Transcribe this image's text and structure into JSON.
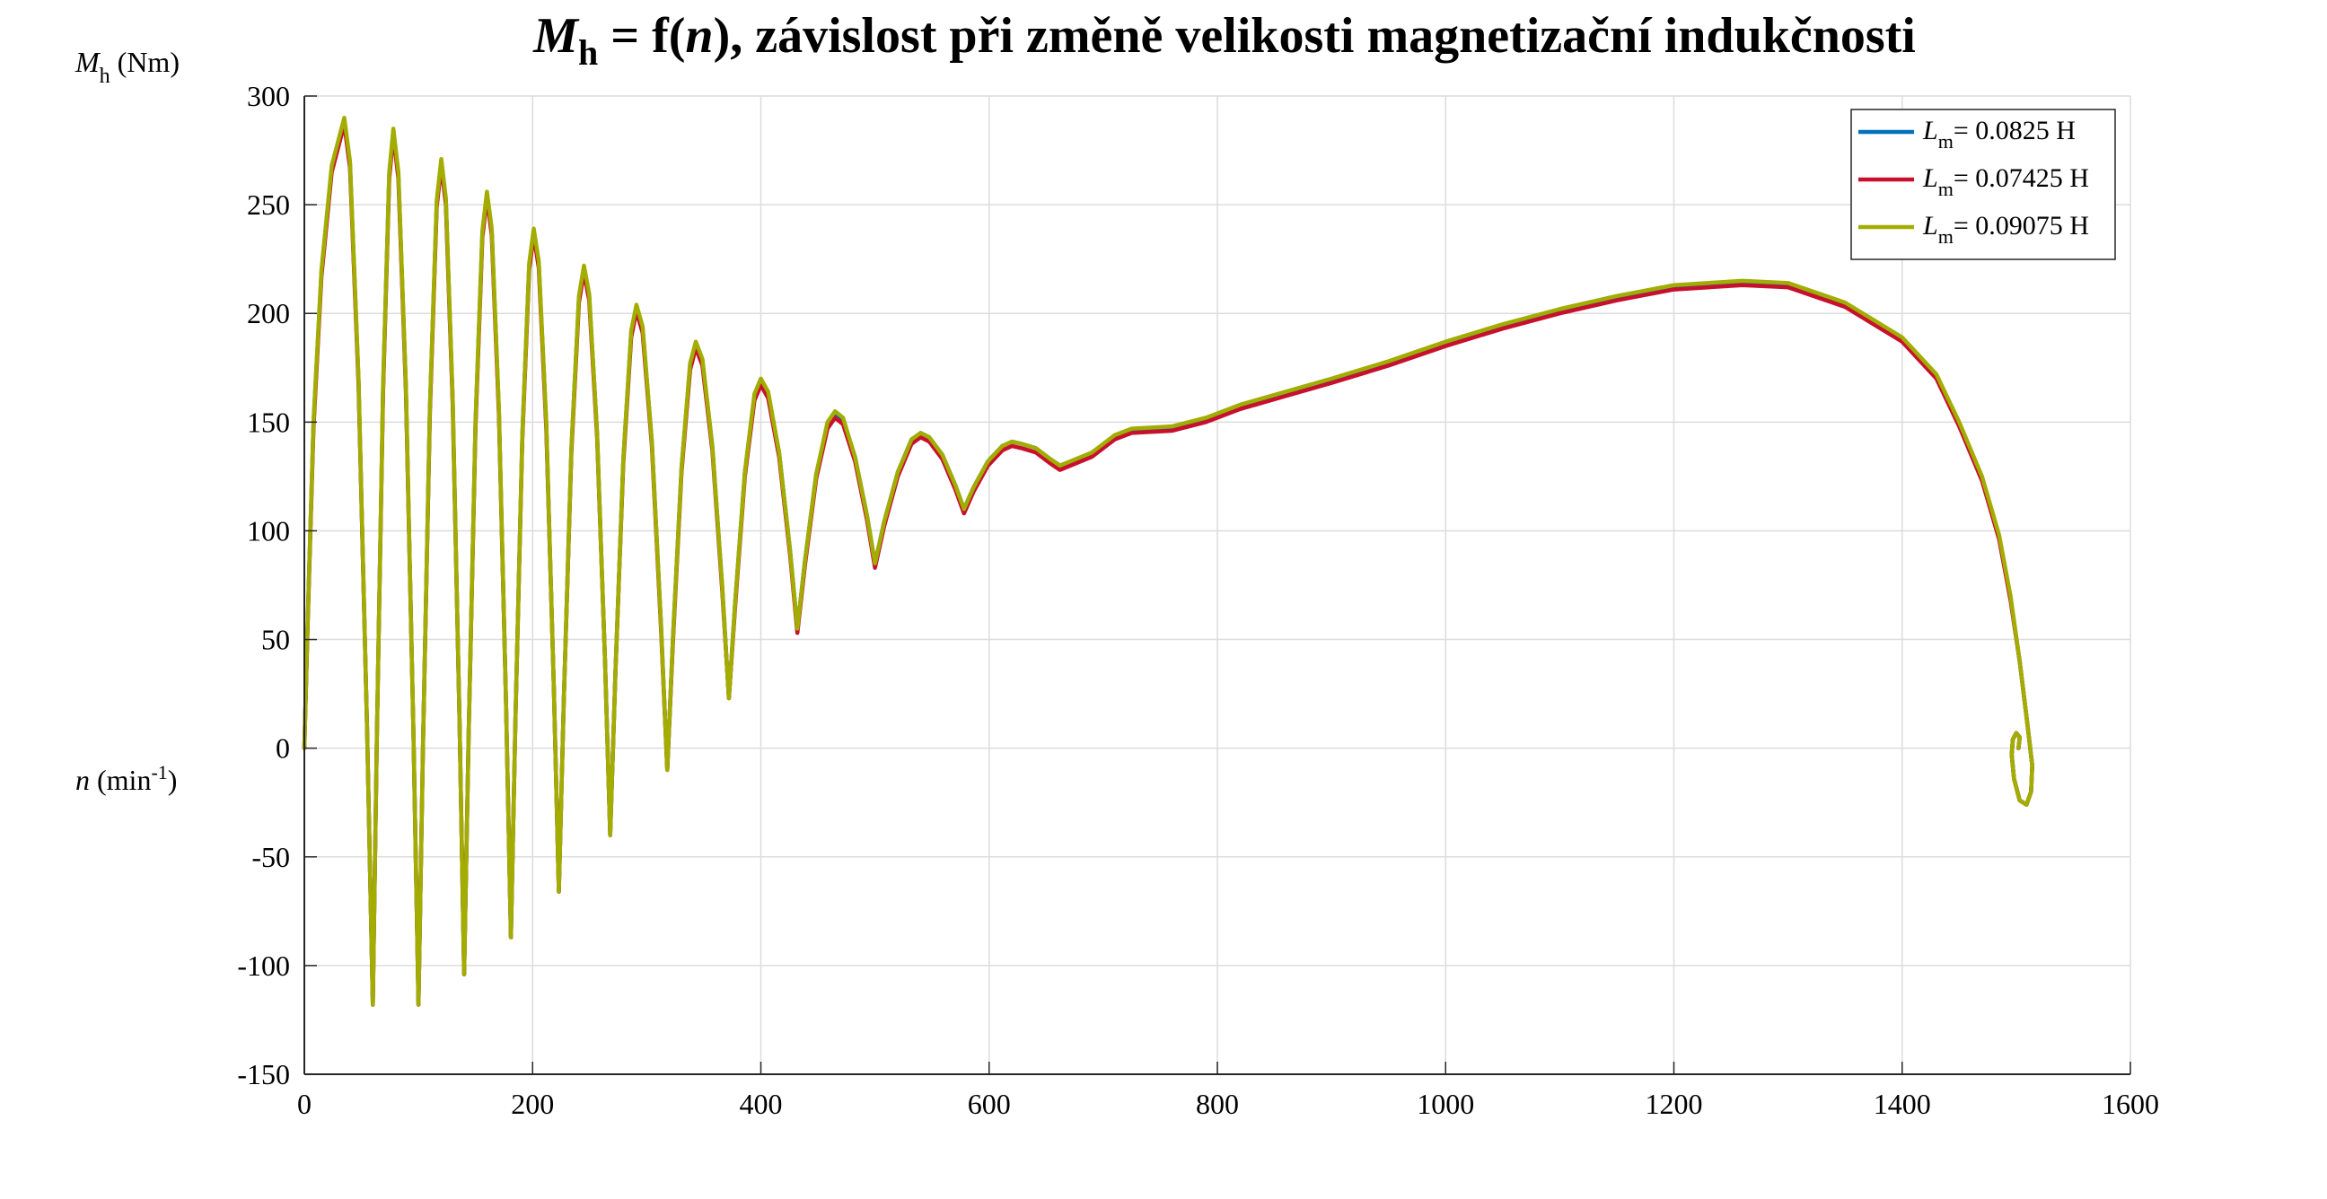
{
  "chart_data": {
    "type": "line",
    "title": [
      "M",
      "h",
      " = f(",
      "n",
      "), závislost při změně velikosti magnetizační indukčnosti"
    ],
    "ylabel": [
      "M",
      "h",
      " (Nm)"
    ],
    "xlabel": [
      "n",
      " (min",
      "-1",
      ")"
    ],
    "xlim": [
      0,
      1600
    ],
    "ylim": [
      -150,
      300
    ],
    "xticks": [
      0,
      200,
      400,
      600,
      800,
      1000,
      1200,
      1400,
      1600
    ],
    "yticks": [
      -150,
      -100,
      -50,
      0,
      50,
      100,
      150,
      200,
      250,
      300
    ],
    "grid": true,
    "legend": "upper-right",
    "x": [
      0,
      3,
      8,
      15,
      24,
      35,
      40,
      47.5,
      55,
      60,
      63.6,
      69,
      74.4,
      78,
      82.4,
      89,
      95.6,
      100,
      104,
      110,
      116,
      120,
      124,
      130,
      136,
      140,
      144,
      150,
      156,
      160,
      164.2,
      170.5,
      176.8,
      181,
      185,
      191,
      197,
      201,
      205.4,
      212,
      218.6,
      223,
      227.4,
      234,
      240.6,
      245,
      249.6,
      256.5,
      263.4,
      268,
      272.6,
      279.5,
      286.4,
      291,
      296.4,
      304.5,
      312.6,
      318,
      323,
      330.5,
      338,
      343,
      348.8,
      357.5,
      366.2,
      372,
      377.6,
      386,
      394.4,
      400,
      406.4,
      416,
      425.6,
      432,
      438.6,
      448.5,
      458.4,
      465,
      472,
      482.5,
      493,
      500,
      508,
      520,
      532,
      540,
      547.6,
      559,
      570.4,
      578,
      586.4,
      599,
      611.6,
      620,
      628.4,
      641,
      653.6,
      662,
      690,
      710,
      725,
      760,
      790,
      820,
      860,
      900,
      950,
      1000,
      1050,
      1100,
      1150,
      1200,
      1260,
      1300,
      1350,
      1400,
      1430,
      1450,
      1470,
      1485,
      1495,
      1503,
      1510,
      1514,
      1513,
      1509,
      1503,
      1498,
      1496,
      1497,
      1500,
      1503,
      1502
    ],
    "series": [
      {
        "name": [
          "L",
          "m",
          "= 0.0825 H"
        ],
        "color": "#0072bd",
        "values": [
          0,
          60,
          149,
          219,
          267,
          289,
          269,
          169,
          8,
          -118,
          7,
          166,
          264,
          284,
          264,
          166,
          7,
          -118,
          2,
          156,
          251,
          270,
          252,
          160,
          12,
          -104,
          7,
          150,
          237,
          255,
          238,
          155,
          19,
          -87,
          14,
          144,
          222,
          238,
          223,
          149,
          28,
          -66,
          23,
          138,
          207,
          221,
          208,
          145,
          41,
          -40,
          35,
          133,
          191,
          203,
          193,
          141,
          56,
          -10,
          51,
          129,
          176,
          186,
          178,
          139,
          74,
          23,
          68,
          127,
          162,
          169,
          163,
          136,
          91,
          55,
          86,
          126,
          149,
          154,
          151,
          134,
          107,
          85,
          104,
          127,
          142,
          145,
          143,
          135,
          121,
          110,
          120,
          132,
          139,
          141,
          140,
          138,
          133,
          130,
          135,
          143,
          146,
          147,
          151,
          157,
          163,
          169,
          177,
          186,
          194,
          201,
          207,
          212,
          214,
          213,
          204,
          188,
          171,
          149,
          124,
          97,
          69,
          40,
          10,
          -8,
          -20,
          -26,
          -24,
          -14,
          -3,
          4,
          7,
          5,
          0
        ]
      },
      {
        "name": [
          "L",
          "m",
          "= 0.07425 H"
        ],
        "color": "#c8102e",
        "values": [
          0,
          58,
          147,
          217,
          265,
          287,
          267,
          167,
          8,
          -118,
          7,
          164,
          262,
          282,
          262,
          164,
          7,
          -118,
          2,
          154,
          249,
          268,
          250,
          158,
          12,
          -104,
          7,
          148,
          235,
          253,
          236,
          153,
          19,
          -87,
          14,
          142,
          220,
          236,
          221,
          147,
          28,
          -66,
          23,
          136,
          205,
          219,
          206,
          143,
          41,
          -40,
          35,
          131,
          189,
          201,
          191,
          139,
          54,
          -10,
          49,
          127,
          174,
          184,
          176,
          137,
          72,
          23,
          66,
          125,
          160,
          167,
          161,
          134,
          89,
          53,
          84,
          124,
          147,
          152,
          149,
          132,
          105,
          83,
          102,
          125,
          140,
          143,
          141,
          133,
          119,
          108,
          118,
          130,
          137,
          139,
          138,
          136,
          131,
          128,
          134,
          142,
          145,
          146,
          150,
          156,
          162,
          168,
          176,
          185,
          193,
          200,
          206,
          211,
          213,
          212,
          203,
          187,
          170,
          148,
          123,
          96,
          68,
          40,
          10,
          -8,
          -20,
          -26,
          -24,
          -14,
          -3,
          4,
          7,
          5,
          0
        ]
      },
      {
        "name": [
          "L",
          "m",
          "= 0.09075 H"
        ],
        "color": "#a2ad00",
        "values": [
          0,
          60,
          150,
          220,
          268,
          290,
          270,
          170,
          8,
          -118,
          7,
          167,
          265,
          285,
          265,
          167,
          7,
          -118,
          2,
          157,
          252,
          271,
          253,
          161,
          12,
          -104,
          7,
          151,
          238,
          256,
          239,
          156,
          19,
          -87,
          14,
          144,
          223,
          239,
          224,
          150,
          28,
          -66,
          23,
          138,
          208,
          222,
          209,
          145,
          41,
          -40,
          35,
          133,
          192,
          204,
          194,
          141,
          56,
          -10,
          51,
          129,
          177,
          187,
          179,
          139,
          74,
          23,
          68,
          127,
          163,
          170,
          164,
          136,
          91,
          55,
          86,
          126,
          150,
          155,
          152,
          134,
          107,
          85,
          104,
          127,
          142,
          145,
          143,
          135,
          121,
          110,
          120,
          132,
          139,
          141,
          140,
          138,
          133,
          130,
          136,
          144,
          147,
          148,
          152,
          158,
          164,
          170,
          178,
          187,
          195,
          202,
          208,
          213,
          215,
          214,
          205,
          189,
          172,
          150,
          125,
          98,
          70,
          40,
          10,
          -8,
          -20,
          -26,
          -24,
          -14,
          -3,
          4,
          7,
          5,
          0
        ]
      }
    ]
  }
}
